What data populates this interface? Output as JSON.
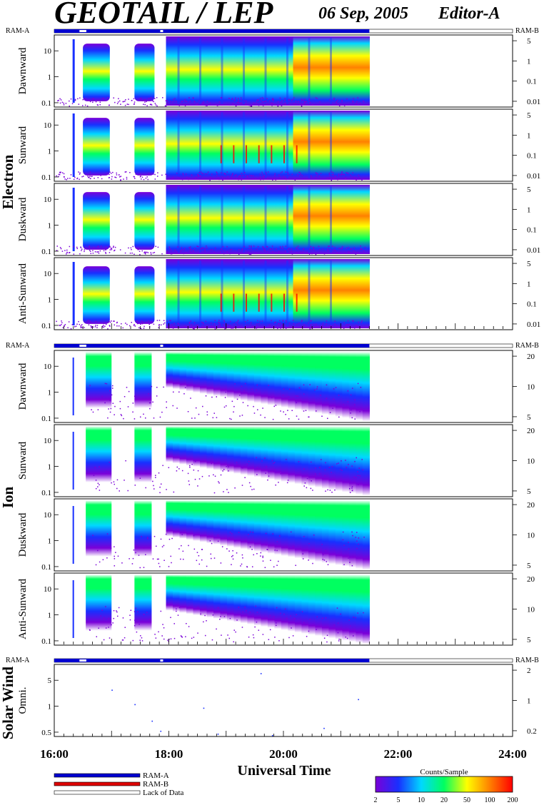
{
  "header": {
    "title": "GEOTAIL / LEP",
    "date": "06 Sep, 2005",
    "editor": "Editor-A"
  },
  "chart_data": {
    "type": "heatmap",
    "xlabel": "Universal Time",
    "x_ticks": [
      "16:00",
      "18:00",
      "20:00",
      "22:00",
      "24:00"
    ],
    "x_range_hours": [
      16,
      24
    ],
    "data_end_hour": 21.5,
    "ram_labels": {
      "left": "RAM-A",
      "right": "RAM-B"
    },
    "sections": [
      {
        "name": "Electron",
        "panels": [
          "Dawnward",
          "Sunward",
          "Duskward",
          "Anti-Sunward"
        ],
        "left_ticks": [
          "10",
          "1",
          "0.1"
        ],
        "right_ticks": [
          "5",
          "1",
          "0.1",
          "0.01"
        ]
      },
      {
        "name": "Ion",
        "panels": [
          "Dawnward",
          "Sunward",
          "Duskward",
          "Anti-Sunward"
        ],
        "left_ticks": [
          "10",
          "1",
          "0.1"
        ],
        "right_ticks": [
          "20",
          "10",
          "5"
        ]
      },
      {
        "name": "Solar Wind",
        "panels": [
          "Omni."
        ],
        "left_ticks": [
          "5",
          "1",
          "0.5"
        ],
        "right_ticks": [
          "2",
          "1",
          "0.2"
        ]
      }
    ],
    "data_gaps_hours": [
      [
        16.44,
        16.56
      ],
      [
        17.85,
        17.9
      ]
    ],
    "electron_bursts_hours": [
      [
        16.5,
        16.97
      ],
      [
        17.4,
        17.75
      ],
      [
        17.95,
        21.5
      ]
    ],
    "ion_bursts_hours": [
      [
        16.55,
        17.0
      ],
      [
        17.4,
        17.7
      ],
      [
        17.95,
        21.5
      ]
    ],
    "colorbar": {
      "label": "Counts/Sample",
      "ticks": [
        "2",
        "5",
        "10",
        "20",
        "50",
        "100",
        "200"
      ],
      "colors": [
        "#7a00d8",
        "#1830ff",
        "#00d8ff",
        "#00ff60",
        "#ffff00",
        "#ff8000",
        "#ff0000"
      ]
    },
    "legend": [
      {
        "label": "RAM-A",
        "color": "#0000d0"
      },
      {
        "label": "RAM-B",
        "color": "#dd0000"
      },
      {
        "label": "Lack of Data",
        "color": "#ffffff"
      }
    ]
  }
}
